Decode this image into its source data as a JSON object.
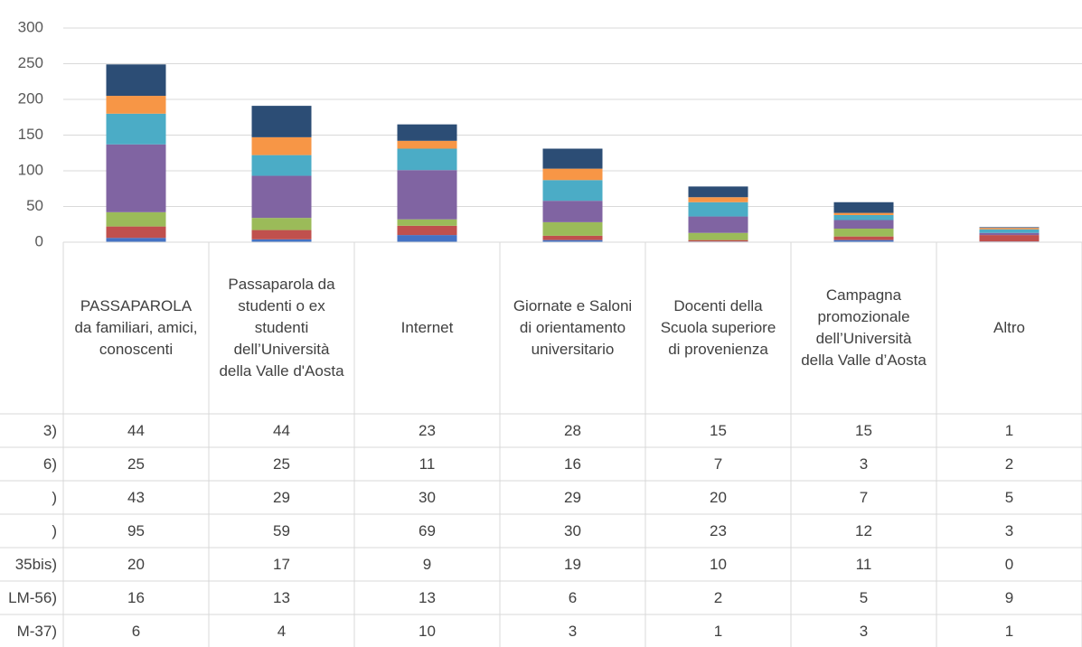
{
  "chart_data": {
    "type": "bar",
    "stacked": true,
    "categories": [
      "PASSAPAROLA da familiari, amici, conoscenti",
      "Passaparola da studenti o ex studenti dell’Università della Valle d'Aosta",
      "Internet",
      "Giornate e Saloni di orientamento universitario",
      "Docenti della Scuola superiore di provenienza",
      "Campagna promozionale dell’Università della Valle d’Aosta",
      "Altro"
    ],
    "series": [
      {
        "name": "3)",
        "color": "#2c4d75",
        "values": [
          44,
          44,
          23,
          28,
          15,
          15,
          1
        ]
      },
      {
        "name": "6)",
        "color": "#f79646",
        "values": [
          25,
          25,
          11,
          16,
          7,
          3,
          2
        ]
      },
      {
        "name": ")",
        "color": "#4bacc6",
        "values": [
          43,
          29,
          30,
          29,
          20,
          7,
          5
        ]
      },
      {
        "name": ")",
        "color": "#8064a2",
        "values": [
          95,
          59,
          69,
          30,
          23,
          12,
          3
        ]
      },
      {
        "name": "35bis)",
        "color": "#9bbb59",
        "values": [
          20,
          17,
          9,
          19,
          10,
          11,
          0
        ]
      },
      {
        "name": "LM-56)",
        "color": "#c0504d",
        "values": [
          16,
          13,
          13,
          6,
          2,
          5,
          9
        ]
      },
      {
        "name": "M-37)",
        "color": "#4472c4",
        "values": [
          6,
          4,
          10,
          3,
          1,
          3,
          1
        ]
      }
    ],
    "ylim": [
      0,
      300
    ],
    "yticks": [
      0,
      50,
      100,
      150,
      200,
      250,
      300
    ],
    "grid": true,
    "data_table": true
  }
}
